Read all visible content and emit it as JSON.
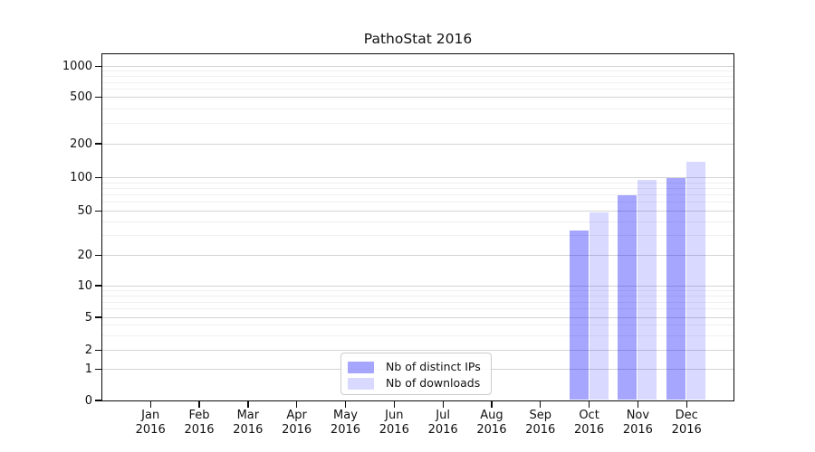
{
  "chart_data": {
    "type": "bar",
    "title": "PathoStat 2016",
    "x_tick_labels": [
      [
        "Jan",
        "2016"
      ],
      [
        "Feb",
        "2016"
      ],
      [
        "Mar",
        "2016"
      ],
      [
        "Apr",
        "2016"
      ],
      [
        "May",
        "2016"
      ],
      [
        "Jun",
        "2016"
      ],
      [
        "Jul",
        "2016"
      ],
      [
        "Aug",
        "2016"
      ],
      [
        "Sep",
        "2016"
      ],
      [
        "Oct",
        "2016"
      ],
      [
        "Nov",
        "2016"
      ],
      [
        "Dec",
        "2016"
      ]
    ],
    "series": [
      {
        "name": "Nb of distinct IPs",
        "color": "#0000ff",
        "alpha": 0.35,
        "values": [
          0,
          0,
          0,
          0,
          0,
          0,
          0,
          0,
          0,
          33,
          69,
          98
        ]
      },
      {
        "name": "Nb of downloads",
        "color": "#0000ff",
        "alpha": 0.15,
        "values": [
          0,
          0,
          0,
          0,
          0,
          0,
          0,
          0,
          0,
          48,
          94,
          137
        ]
      }
    ],
    "y_axis": {
      "scale": "symlog",
      "ticks": [
        1000,
        500,
        200,
        100,
        50,
        20,
        10,
        5,
        2,
        1,
        0
      ],
      "minor_ticks": [
        3,
        4,
        6,
        7,
        8,
        9,
        30,
        40,
        60,
        70,
        80,
        90,
        300,
        400,
        600,
        700,
        800,
        900
      ]
    },
    "legend": {
      "position": "lower center"
    },
    "grid": true
  }
}
